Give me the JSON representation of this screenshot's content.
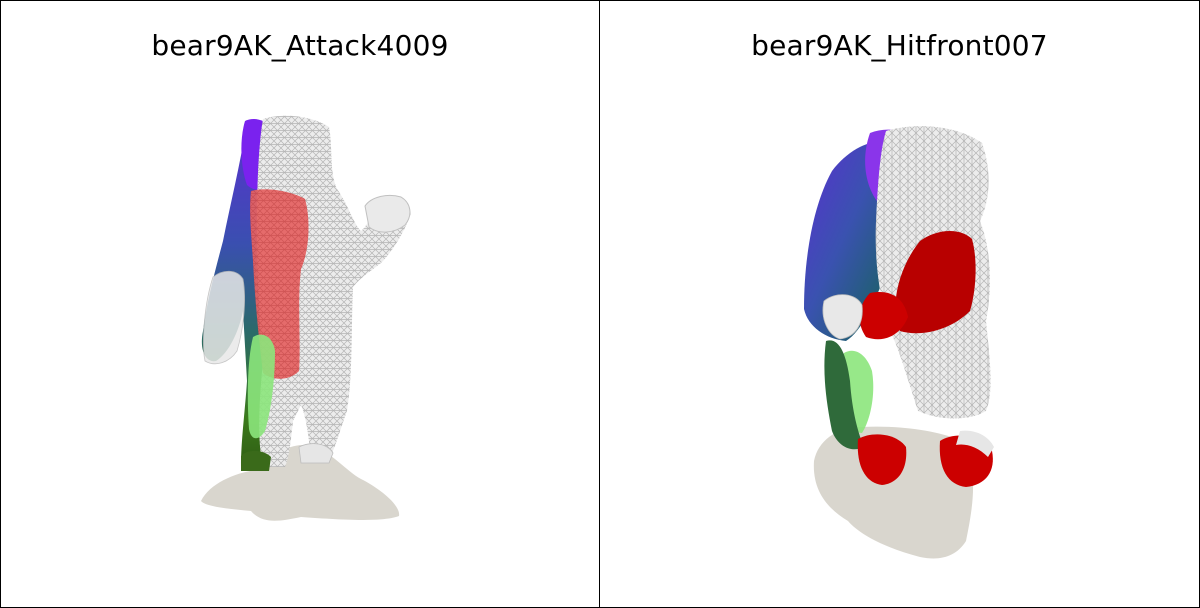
{
  "panels": [
    {
      "title": "bear9AK_Attack4009"
    },
    {
      "title": "bear9AK_Hitfront007"
    }
  ],
  "colors": {
    "background": "#ffffff",
    "border": "#000000",
    "shadow": "#d9d6ce",
    "mesh": "#e6e6e6",
    "mesh_line": "#b9b9b9",
    "red": "#e00000",
    "dark_red": "#b80000",
    "purple": "#8a2be2",
    "blue": "#3a4fb0",
    "teal": "#1f5f70",
    "green": "#7fe07f",
    "dark_green": "#3b7a1a"
  }
}
